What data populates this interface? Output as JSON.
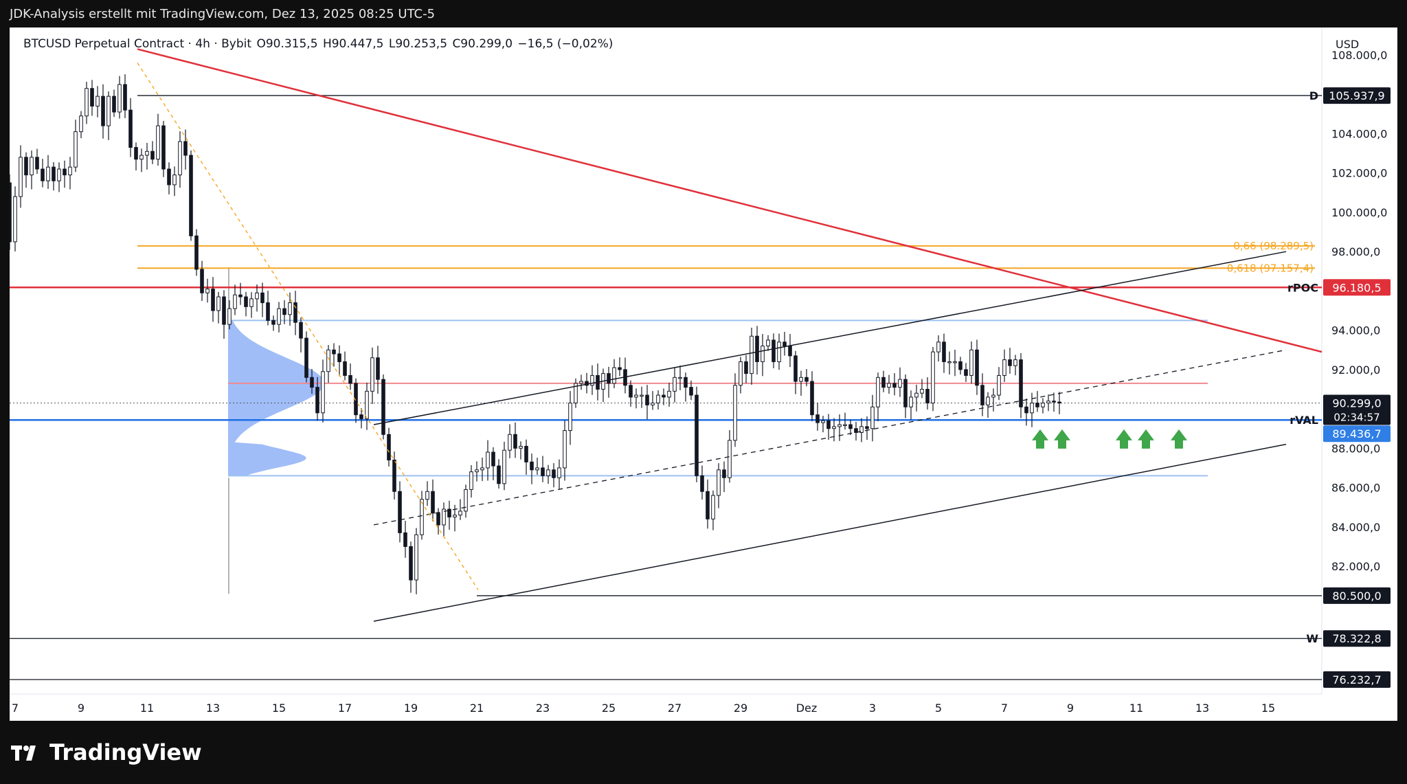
{
  "header": {
    "caption": "JDK-Analysis erstellt mit TradingView.com, Dez 13, 2025 08:25 UTC-5"
  },
  "legend": {
    "symbol": "BTCUSD Perpetual Contract · 4h · Bybit",
    "open": "O90.315,5",
    "high": "H90.447,5",
    "low": "L90.253,5",
    "close": "C90.299,0",
    "change": "−16,5 (−0,02%)"
  },
  "footer": {
    "brand": "TradingView",
    "logo_icon": "tradingview-logo-icon"
  },
  "colors": {
    "background": "#ffffff",
    "outer": "#0f0f0f",
    "candle": "#131722",
    "red_line": "#e0303a",
    "orange_line": "#f5a623",
    "blue_line": "#1f6fe5",
    "light_blue_line": "#9dc1f2",
    "light_red_line": "#f08a90",
    "profile_grey": "#9e9e9e",
    "profile_blue": "#8fb1f7",
    "arrow_green": "#3fa64a",
    "price_label_bg": "#131722",
    "poc_label_bg": "#e0303a",
    "val_label_bg": "#2f7fe6"
  },
  "chart_data": {
    "type": "candlestick",
    "currency": "USD",
    "ylim": [
      75500,
      109400
    ],
    "x_ticks": [
      "7",
      "9",
      "11",
      "13",
      "15",
      "17",
      "19",
      "21",
      "23",
      "25",
      "27",
      "29",
      "Dez",
      "3",
      "5",
      "7",
      "9",
      "11",
      "13",
      "15"
    ],
    "y_ticks": [
      "108.000,0",
      "104.000,0",
      "102.000,0",
      "100.000,0",
      "98.000,0",
      "94.000,0",
      "92.000,0",
      "88.000,0",
      "86.000,0",
      "84.000,0",
      "82.000,0"
    ],
    "y_tick_values": [
      108000,
      104000,
      102000,
      100000,
      98000,
      94000,
      92000,
      88000,
      86000,
      84000,
      82000
    ],
    "levels": [
      {
        "id": "D",
        "label": "D",
        "price": 105937.9,
        "value_label": "105.937,9",
        "style": "black"
      },
      {
        "id": "fib066",
        "label": "0,66 (98.289,5)",
        "price": 98289.5,
        "style": "orange"
      },
      {
        "id": "fib0618",
        "label": "0,618 (97.157,4)",
        "price": 97157.4,
        "style": "orange"
      },
      {
        "id": "rPOC",
        "label": "rPOC",
        "price": 96180.5,
        "value_label": "96.180,5",
        "style": "red"
      },
      {
        "id": "rVAL",
        "label": "rVAL",
        "price": 89436.7,
        "value_label": "89.436,7",
        "style": "blue"
      },
      {
        "id": "low",
        "label": "",
        "price": 80500.0,
        "value_label": "80.500,0",
        "style": "black"
      },
      {
        "id": "W",
        "label": "W",
        "price": 78322.8,
        "value_label": "78.322,8",
        "style": "black"
      },
      {
        "id": "extra",
        "label": "",
        "price": 76232.7,
        "value_label": "76.232,7",
        "style": "black"
      }
    ],
    "current_price": {
      "value": 90299.0,
      "label": "90.299,0",
      "countdown": "02:34:57"
    },
    "profile_levels": {
      "vah": 94500,
      "mid": 91300,
      "val": 86600
    },
    "closes": [
      101000,
      101500,
      98500,
      100800,
      102800,
      101900,
      102800,
      102200,
      101600,
      102300,
      101600,
      102200,
      101900,
      102300,
      104100,
      104900,
      106300,
      105400,
      105900,
      104400,
      105900,
      105100,
      106500,
      105200,
      103300,
      102700,
      102900,
      103100,
      102700,
      104400,
      102200,
      101400,
      101900,
      103600,
      102900,
      98800,
      97100,
      95900,
      96100,
      95000,
      95700,
      94300,
      95100,
      95800,
      95700,
      95200,
      95600,
      95900,
      95400,
      94500,
      94300,
      95100,
      94800,
      95400,
      94400,
      93600,
      91600,
      91100,
      89800,
      91900,
      93000,
      92800,
      92400,
      91700,
      91300,
      89700,
      89500,
      90900,
      92600,
      91500,
      88700,
      87400,
      85800,
      83700,
      83000,
      81300,
      83600,
      85400,
      85800,
      84700,
      84100,
      84900,
      84500,
      84600,
      84800,
      85900,
      86800,
      86900,
      87000,
      87800,
      87100,
      86200,
      87900,
      88700,
      88000,
      88100,
      87300,
      86900,
      87000,
      86600,
      86900,
      86500,
      87000,
      88900,
      90300,
      91300,
      91400,
      91200,
      91700,
      91000,
      91800,
      91300,
      92100,
      92000,
      91200,
      90600,
      90700,
      90700,
      90200,
      90300,
      90700,
      90600,
      90900,
      91600,
      91600,
      91100,
      90700,
      86600,
      85800,
      84400,
      85600,
      86900,
      86500,
      88400,
      91200,
      92400,
      91800,
      93700,
      92400,
      93200,
      93500,
      92400,
      93400,
      93200,
      92700,
      91400,
      91600,
      91400,
      89700,
      89300,
      89400,
      89000,
      89100,
      89200,
      89200,
      89000,
      88800,
      89100,
      89000,
      90100,
      91600,
      91100,
      91300,
      91100,
      91500,
      90100,
      90600,
      90800,
      91000,
      90300,
      92900,
      93400,
      92400,
      92400,
      92400,
      92000,
      91700,
      93000,
      91200,
      90200,
      90600,
      90700,
      91700,
      92500,
      92200,
      92500,
      90100,
      89800,
      90300,
      90100,
      90300,
      90400,
      90350,
      90300
    ]
  }
}
